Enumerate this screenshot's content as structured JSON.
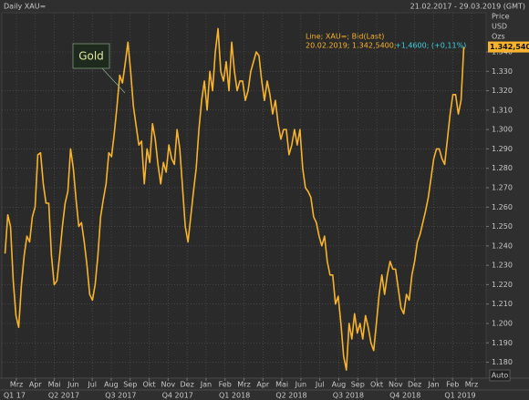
{
  "chart_data": {
    "type": "line",
    "title": "Daily XAU=",
    "date_range": "21.02.2017 - 29.03.2019 (GMT)",
    "axis_label": [
      "Price",
      "USD",
      "Ozs"
    ],
    "legend_title": "Line; XAU=; Bid(Last)",
    "legend_values": "20.02.2019; 1.342,5400;",
    "legend_change": "+1,4600; (+0,11%)",
    "annotation": "Gold",
    "last_value_label": "1.342,5400",
    "auto_label": "Auto",
    "color": "#f7b32b",
    "grid": true,
    "xlim": [
      1.23,
      26.77
    ],
    "ylim": [
      1.1718,
      1.3602
    ],
    "yticks": [
      {
        "value": 1.18,
        "label": "1.180"
      },
      {
        "value": 1.19,
        "label": "1.190"
      },
      {
        "value": 1.2,
        "label": "1.200"
      },
      {
        "value": 1.21,
        "label": "1.210"
      },
      {
        "value": 1.22,
        "label": "1.220"
      },
      {
        "value": 1.23,
        "label": "1.230"
      },
      {
        "value": 1.24,
        "label": "1.240"
      },
      {
        "value": 1.25,
        "label": "1.250"
      },
      {
        "value": 1.26,
        "label": "1.260"
      },
      {
        "value": 1.27,
        "label": "1.270"
      },
      {
        "value": 1.28,
        "label": "1.280"
      },
      {
        "value": 1.29,
        "label": "1.290"
      },
      {
        "value": 1.3,
        "label": "1.300"
      },
      {
        "value": 1.31,
        "label": "1.310"
      },
      {
        "value": 1.32,
        "label": "1.320"
      },
      {
        "value": 1.33,
        "label": "1.330"
      },
      {
        "value": 1.34,
        "label": "1.340"
      }
    ],
    "xticks": [
      {
        "value": 2,
        "label": "Mrz"
      },
      {
        "value": 3,
        "label": "Apr"
      },
      {
        "value": 4,
        "label": "Mai"
      },
      {
        "value": 5,
        "label": "Jun"
      },
      {
        "value": 6,
        "label": "Jul"
      },
      {
        "value": 7,
        "label": "Aug"
      },
      {
        "value": 8,
        "label": "Sep"
      },
      {
        "value": 9,
        "label": "Okt"
      },
      {
        "value": 10,
        "label": "Nov"
      },
      {
        "value": 11,
        "label": "Dez"
      },
      {
        "value": 12,
        "label": "Jan"
      },
      {
        "value": 13,
        "label": "Feb"
      },
      {
        "value": 14,
        "label": "Mrz"
      },
      {
        "value": 15,
        "label": "Apr"
      },
      {
        "value": 16,
        "label": "Mai"
      },
      {
        "value": 17,
        "label": "Jun"
      },
      {
        "value": 18,
        "label": "Jul"
      },
      {
        "value": 19,
        "label": "Aug"
      },
      {
        "value": 20,
        "label": "Sep"
      },
      {
        "value": 21,
        "label": "Okt"
      },
      {
        "value": 22,
        "label": "Nov"
      },
      {
        "value": 23,
        "label": "Dez"
      },
      {
        "value": 24,
        "label": "Jan"
      },
      {
        "value": 25,
        "label": "Feb"
      },
      {
        "value": 26,
        "label": "Mrz"
      }
    ],
    "quarter_ticks": [
      {
        "value": 1.9,
        "label": "Q1 17"
      },
      {
        "value": 4.5,
        "label": "Q2 2017"
      },
      {
        "value": 7.5,
        "label": "Q3 2017"
      },
      {
        "value": 10.5,
        "label": "Q4 2017"
      },
      {
        "value": 13.5,
        "label": "Q1 2018"
      },
      {
        "value": 16.5,
        "label": "Q2 2018"
      },
      {
        "value": 19.5,
        "label": "Q3 2018"
      },
      {
        "value": 22.5,
        "label": "Q4 2018"
      },
      {
        "value": 25.4,
        "label": "Q1 2019"
      }
    ],
    "x": [
      1.4,
      1.544,
      1.688,
      1.832,
      1.976,
      2.12,
      2.264,
      2.408,
      2.552,
      2.696,
      2.84,
      2.984,
      3.128,
      3.272,
      3.416,
      3.56,
      3.704,
      3.848,
      3.992,
      4.136,
      4.28,
      4.424,
      4.568,
      4.712,
      4.856,
      5,
      5.144,
      5.288,
      5.432,
      5.576,
      5.72,
      5.864,
      6.008,
      6.152,
      6.296,
      6.44,
      6.584,
      6.728,
      6.872,
      7.016,
      7.16,
      7.304,
      7.448,
      7.592,
      7.736,
      7.88,
      8.024,
      8.168,
      8.312,
      8.456,
      8.6,
      8.744,
      8.888,
      9.032,
      9.176,
      9.32,
      9.464,
      9.608,
      9.752,
      9.896,
      10.04,
      10.184,
      10.328,
      10.472,
      10.616,
      10.76,
      10.904,
      11.048,
      11.192,
      11.336,
      11.48,
      11.624,
      11.768,
      11.912,
      12.056,
      12.2,
      12.344,
      12.488,
      12.632,
      12.776,
      12.92,
      13.064,
      13.208,
      13.352,
      13.496,
      13.64,
      13.784,
      13.928,
      14.072,
      14.216,
      14.36,
      14.504,
      14.648,
      14.792,
      14.936,
      15.08,
      15.224,
      15.368,
      15.512,
      15.656,
      15.8,
      15.944,
      16.088,
      16.232,
      16.376,
      16.52,
      16.664,
      16.808,
      16.952,
      17.096,
      17.24,
      17.384,
      17.528,
      17.672,
      17.816,
      17.96,
      18.104,
      18.248,
      18.392,
      18.536,
      18.68,
      18.824,
      18.968,
      19.112,
      19.256,
      19.4,
      19.544,
      19.688,
      19.832,
      19.976,
      20.12,
      20.264,
      20.408,
      20.552,
      20.696,
      20.84,
      20.984,
      21.128,
      21.272,
      21.416,
      21.56,
      21.704,
      21.848,
      21.992,
      22.136,
      22.28,
      22.424,
      22.568,
      22.712,
      22.856,
      23,
      23.144,
      23.288,
      23.432,
      23.576,
      23.72,
      23.864,
      24.008,
      24.152,
      24.296,
      24.44,
      24.584,
      24.728,
      24.872,
      25.016,
      25.16,
      25.304,
      25.448,
      25.592
    ],
    "values": [
      1.236,
      1.256,
      1.25,
      1.222,
      1.204,
      1.198,
      1.22,
      1.235,
      1.245,
      1.242,
      1.255,
      1.26,
      1.287,
      1.288,
      1.272,
      1.262,
      1.262,
      1.235,
      1.22,
      1.222,
      1.235,
      1.25,
      1.262,
      1.268,
      1.29,
      1.28,
      1.264,
      1.25,
      1.252,
      1.242,
      1.23,
      1.215,
      1.212,
      1.22,
      1.235,
      1.255,
      1.264,
      1.272,
      1.288,
      1.286,
      1.298,
      1.312,
      1.328,
      1.324,
      1.334,
      1.345,
      1.33,
      1.312,
      1.302,
      1.292,
      1.294,
      1.272,
      1.29,
      1.283,
      1.303,
      1.295,
      1.282,
      1.272,
      1.283,
      1.278,
      1.292,
      1.285,
      1.282,
      1.3,
      1.29,
      1.27,
      1.25,
      1.242,
      1.255,
      1.268,
      1.28,
      1.3,
      1.315,
      1.325,
      1.31,
      1.33,
      1.32,
      1.34,
      1.352,
      1.33,
      1.325,
      1.335,
      1.32,
      1.345,
      1.33,
      1.32,
      1.325,
      1.325,
      1.315,
      1.32,
      1.33,
      1.335,
      1.34,
      1.338,
      1.325,
      1.315,
      1.325,
      1.318,
      1.308,
      1.315,
      1.303,
      1.295,
      1.3,
      1.3,
      1.287,
      1.292,
      1.3,
      1.292,
      1.3,
      1.28,
      1.27,
      1.268,
      1.265,
      1.255,
      1.252,
      1.245,
      1.24,
      1.245,
      1.232,
      1.225,
      1.225,
      1.21,
      1.214,
      1.2,
      1.183,
      1.176,
      1.2,
      1.192,
      1.205,
      1.195,
      1.2,
      1.192,
      1.204,
      1.198,
      1.19,
      1.186,
      1.2,
      1.215,
      1.225,
      1.215,
      1.225,
      1.232,
      1.228,
      1.228,
      1.218,
      1.208,
      1.205,
      1.215,
      1.212,
      1.225,
      1.232,
      1.242,
      1.246,
      1.252,
      1.258,
      1.265,
      1.275,
      1.285,
      1.29,
      1.29,
      1.285,
      1.282,
      1.295,
      1.308,
      1.318,
      1.318,
      1.308,
      1.315,
      1.34254
    ]
  }
}
